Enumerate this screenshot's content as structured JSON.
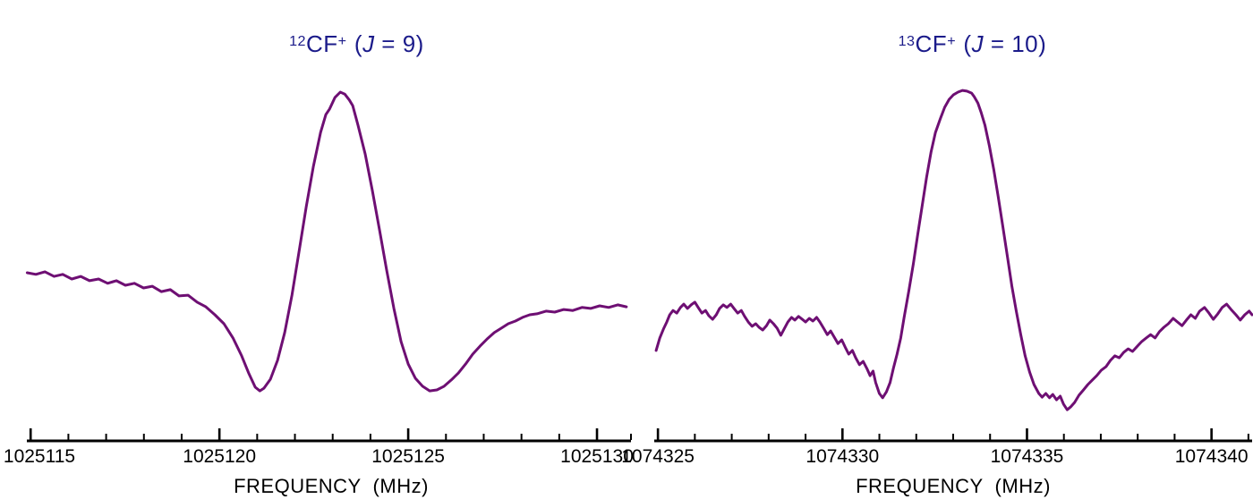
{
  "figure": {
    "background": "#ffffff",
    "title_color": "#1b1b8a",
    "axis_color": "#000000"
  },
  "chart_data": [
    {
      "type": "line",
      "title": "12CF+ (J = 9)",
      "title_parts": {
        "isotope": "12",
        "molecule": "CF",
        "charge": "+",
        "j_open": "(",
        "j_symbol": "J",
        "j_rest": " = 9)"
      },
      "xlabel": "FREQUENCY  (MHz)",
      "ylabel": "",
      "grid": false,
      "legend": false,
      "x_range": [
        1025114.9,
        1025130.9
      ],
      "x_major_ticks": [
        1025115,
        1025120,
        1025125,
        1025130
      ],
      "x_minor_ticks": [
        1025116,
        1025117,
        1025118,
        1025119,
        1025121,
        1025122,
        1025123,
        1025124,
        1025126,
        1025127,
        1025128,
        1025129,
        1025130.9
      ],
      "line_color": "#6E0F73",
      "y_units": "arbitrary intensity 0-1",
      "points": [
        [
          1025114.91,
          0.446
        ],
        [
          1025115.14,
          0.441
        ],
        [
          1025115.38,
          0.449
        ],
        [
          1025115.62,
          0.435
        ],
        [
          1025115.85,
          0.441
        ],
        [
          1025116.09,
          0.427
        ],
        [
          1025116.33,
          0.435
        ],
        [
          1025116.56,
          0.422
        ],
        [
          1025116.8,
          0.427
        ],
        [
          1025117.04,
          0.414
        ],
        [
          1025117.27,
          0.422
        ],
        [
          1025117.51,
          0.408
        ],
        [
          1025117.75,
          0.414
        ],
        [
          1025117.99,
          0.4
        ],
        [
          1025118.22,
          0.405
        ],
        [
          1025118.46,
          0.389
        ],
        [
          1025118.7,
          0.395
        ],
        [
          1025118.93,
          0.376
        ],
        [
          1025119.17,
          0.378
        ],
        [
          1025119.41,
          0.357
        ],
        [
          1025119.64,
          0.343
        ],
        [
          1025119.88,
          0.319
        ],
        [
          1025120.12,
          0.292
        ],
        [
          1025120.36,
          0.249
        ],
        [
          1025120.59,
          0.195
        ],
        [
          1025120.78,
          0.141
        ],
        [
          1025120.95,
          0.1
        ],
        [
          1025121.07,
          0.089
        ],
        [
          1025121.18,
          0.097
        ],
        [
          1025121.35,
          0.124
        ],
        [
          1025121.54,
          0.181
        ],
        [
          1025121.73,
          0.265
        ],
        [
          1025121.92,
          0.378
        ],
        [
          1025122.11,
          0.511
        ],
        [
          1025122.3,
          0.646
        ],
        [
          1025122.49,
          0.768
        ],
        [
          1025122.68,
          0.87
        ],
        [
          1025122.82,
          0.924
        ],
        [
          1025122.92,
          0.941
        ],
        [
          1025123.06,
          0.976
        ],
        [
          1025123.2,
          0.992
        ],
        [
          1025123.32,
          0.986
        ],
        [
          1025123.44,
          0.968
        ],
        [
          1025123.53,
          0.951
        ],
        [
          1025123.67,
          0.892
        ],
        [
          1025123.86,
          0.805
        ],
        [
          1025124.05,
          0.695
        ],
        [
          1025124.24,
          0.576
        ],
        [
          1025124.43,
          0.454
        ],
        [
          1025124.62,
          0.338
        ],
        [
          1025124.81,
          0.238
        ],
        [
          1025125.0,
          0.17
        ],
        [
          1025125.19,
          0.127
        ],
        [
          1025125.38,
          0.103
        ],
        [
          1025125.57,
          0.089
        ],
        [
          1025125.76,
          0.092
        ],
        [
          1025125.95,
          0.103
        ],
        [
          1025126.14,
          0.122
        ],
        [
          1025126.33,
          0.143
        ],
        [
          1025126.52,
          0.17
        ],
        [
          1025126.71,
          0.2
        ],
        [
          1025126.9,
          0.224
        ],
        [
          1025127.09,
          0.246
        ],
        [
          1025127.28,
          0.265
        ],
        [
          1025127.46,
          0.278
        ],
        [
          1025127.65,
          0.292
        ],
        [
          1025127.84,
          0.3
        ],
        [
          1025128.03,
          0.311
        ],
        [
          1025128.22,
          0.319
        ],
        [
          1025128.41,
          0.322
        ],
        [
          1025128.65,
          0.33
        ],
        [
          1025128.88,
          0.327
        ],
        [
          1025129.12,
          0.335
        ],
        [
          1025129.36,
          0.332
        ],
        [
          1025129.6,
          0.341
        ],
        [
          1025129.83,
          0.338
        ],
        [
          1025130.07,
          0.346
        ],
        [
          1025130.31,
          0.341
        ],
        [
          1025130.55,
          0.349
        ],
        [
          1025130.78,
          0.343
        ]
      ]
    },
    {
      "type": "line",
      "title": "13CF+ (J = 10)",
      "title_parts": {
        "isotope": "13",
        "molecule": "CF",
        "charge": "+",
        "j_open": "(",
        "j_symbol": "J",
        "j_rest": " = 10)"
      },
      "xlabel": "FREQUENCY  (MHz)",
      "ylabel": "",
      "grid": false,
      "legend": false,
      "x_range": [
        1074324.9,
        1074341.1
      ],
      "x_major_ticks": [
        1074325,
        1074330,
        1074335,
        1074340
      ],
      "x_minor_ticks": [
        1074326,
        1074327,
        1074328,
        1074329,
        1074331,
        1074332,
        1074333,
        1074334,
        1074336,
        1074337,
        1074338,
        1074339,
        1074341
      ],
      "line_color": "#6E0F73",
      "y_units": "arbitrary intensity 0-1",
      "points": [
        [
          1074324.95,
          0.211
        ],
        [
          1074325.05,
          0.249
        ],
        [
          1074325.15,
          0.276
        ],
        [
          1074325.24,
          0.297
        ],
        [
          1074325.32,
          0.319
        ],
        [
          1074325.41,
          0.332
        ],
        [
          1074325.51,
          0.324
        ],
        [
          1074325.61,
          0.341
        ],
        [
          1074325.7,
          0.351
        ],
        [
          1074325.8,
          0.338
        ],
        [
          1074325.9,
          0.349
        ],
        [
          1074326.0,
          0.357
        ],
        [
          1074326.09,
          0.341
        ],
        [
          1074326.19,
          0.324
        ],
        [
          1074326.29,
          0.332
        ],
        [
          1074326.38,
          0.316
        ],
        [
          1074326.48,
          0.305
        ],
        [
          1074326.58,
          0.319
        ],
        [
          1074326.67,
          0.338
        ],
        [
          1074326.77,
          0.349
        ],
        [
          1074326.87,
          0.341
        ],
        [
          1074326.97,
          0.351
        ],
        [
          1074327.06,
          0.338
        ],
        [
          1074327.16,
          0.324
        ],
        [
          1074327.26,
          0.332
        ],
        [
          1074327.35,
          0.314
        ],
        [
          1074327.45,
          0.297
        ],
        [
          1074327.55,
          0.284
        ],
        [
          1074327.65,
          0.292
        ],
        [
          1074327.74,
          0.281
        ],
        [
          1074327.84,
          0.273
        ],
        [
          1074327.94,
          0.286
        ],
        [
          1074328.03,
          0.303
        ],
        [
          1074328.13,
          0.292
        ],
        [
          1074328.23,
          0.278
        ],
        [
          1074328.33,
          0.257
        ],
        [
          1074328.42,
          0.276
        ],
        [
          1074328.52,
          0.297
        ],
        [
          1074328.62,
          0.311
        ],
        [
          1074328.71,
          0.303
        ],
        [
          1074328.81,
          0.314
        ],
        [
          1074328.91,
          0.305
        ],
        [
          1074329.0,
          0.297
        ],
        [
          1074329.1,
          0.308
        ],
        [
          1074329.2,
          0.3
        ],
        [
          1074329.3,
          0.311
        ],
        [
          1074329.39,
          0.297
        ],
        [
          1074329.49,
          0.278
        ],
        [
          1074329.59,
          0.259
        ],
        [
          1074329.68,
          0.27
        ],
        [
          1074329.78,
          0.251
        ],
        [
          1074329.88,
          0.232
        ],
        [
          1074329.98,
          0.243
        ],
        [
          1074330.07,
          0.222
        ],
        [
          1074330.17,
          0.2
        ],
        [
          1074330.27,
          0.211
        ],
        [
          1074330.36,
          0.189
        ],
        [
          1074330.46,
          0.168
        ],
        [
          1074330.56,
          0.178
        ],
        [
          1074330.66,
          0.157
        ],
        [
          1074330.75,
          0.135
        ],
        [
          1074330.83,
          0.149
        ],
        [
          1074330.9,
          0.114
        ],
        [
          1074331.0,
          0.081
        ],
        [
          1074331.09,
          0.068
        ],
        [
          1074331.19,
          0.086
        ],
        [
          1074331.29,
          0.114
        ],
        [
          1074331.38,
          0.157
        ],
        [
          1074331.48,
          0.2
        ],
        [
          1074331.58,
          0.249
        ],
        [
          1074331.67,
          0.311
        ],
        [
          1074331.8,
          0.392
        ],
        [
          1074331.92,
          0.473
        ],
        [
          1074332.04,
          0.562
        ],
        [
          1074332.16,
          0.649
        ],
        [
          1074332.28,
          0.735
        ],
        [
          1074332.4,
          0.811
        ],
        [
          1074332.52,
          0.87
        ],
        [
          1074332.65,
          0.911
        ],
        [
          1074332.77,
          0.946
        ],
        [
          1074332.89,
          0.97
        ],
        [
          1074333.01,
          0.984
        ],
        [
          1074333.13,
          0.992
        ],
        [
          1074333.25,
          0.997
        ],
        [
          1074333.37,
          0.995
        ],
        [
          1074333.5,
          0.989
        ],
        [
          1074333.57,
          0.978
        ],
        [
          1074333.67,
          0.959
        ],
        [
          1074333.76,
          0.93
        ],
        [
          1074333.86,
          0.892
        ],
        [
          1074333.98,
          0.83
        ],
        [
          1074334.1,
          0.757
        ],
        [
          1074334.22,
          0.676
        ],
        [
          1074334.34,
          0.589
        ],
        [
          1074334.47,
          0.495
        ],
        [
          1074334.59,
          0.405
        ],
        [
          1074334.71,
          0.33
        ],
        [
          1074334.83,
          0.259
        ],
        [
          1074334.95,
          0.195
        ],
        [
          1074335.07,
          0.146
        ],
        [
          1074335.19,
          0.108
        ],
        [
          1074335.32,
          0.081
        ],
        [
          1074335.41,
          0.07
        ],
        [
          1074335.51,
          0.081
        ],
        [
          1074335.61,
          0.068
        ],
        [
          1074335.7,
          0.078
        ],
        [
          1074335.8,
          0.062
        ],
        [
          1074335.9,
          0.073
        ],
        [
          1074335.99,
          0.049
        ],
        [
          1074336.09,
          0.032
        ],
        [
          1074336.19,
          0.041
        ],
        [
          1074336.29,
          0.054
        ],
        [
          1074336.41,
          0.076
        ],
        [
          1074336.53,
          0.092
        ],
        [
          1074336.65,
          0.108
        ],
        [
          1074336.77,
          0.122
        ],
        [
          1074336.89,
          0.135
        ],
        [
          1074337.01,
          0.151
        ],
        [
          1074337.14,
          0.162
        ],
        [
          1074337.26,
          0.181
        ],
        [
          1074337.38,
          0.195
        ],
        [
          1074337.5,
          0.189
        ],
        [
          1074337.62,
          0.205
        ],
        [
          1074337.74,
          0.216
        ],
        [
          1074337.86,
          0.208
        ],
        [
          1074337.99,
          0.224
        ],
        [
          1074338.11,
          0.238
        ],
        [
          1074338.23,
          0.249
        ],
        [
          1074338.35,
          0.259
        ],
        [
          1074338.47,
          0.249
        ],
        [
          1074338.59,
          0.268
        ],
        [
          1074338.71,
          0.281
        ],
        [
          1074338.83,
          0.292
        ],
        [
          1074338.96,
          0.308
        ],
        [
          1074339.08,
          0.297
        ],
        [
          1074339.2,
          0.286
        ],
        [
          1074339.32,
          0.303
        ],
        [
          1074339.44,
          0.319
        ],
        [
          1074339.56,
          0.308
        ],
        [
          1074339.68,
          0.33
        ],
        [
          1074339.81,
          0.341
        ],
        [
          1074339.93,
          0.324
        ],
        [
          1074340.05,
          0.305
        ],
        [
          1074340.17,
          0.322
        ],
        [
          1074340.29,
          0.341
        ],
        [
          1074340.41,
          0.351
        ],
        [
          1074340.53,
          0.335
        ],
        [
          1074340.66,
          0.319
        ],
        [
          1074340.78,
          0.303
        ],
        [
          1074340.9,
          0.319
        ],
        [
          1074341.02,
          0.33
        ],
        [
          1074341.1,
          0.319
        ]
      ]
    }
  ]
}
